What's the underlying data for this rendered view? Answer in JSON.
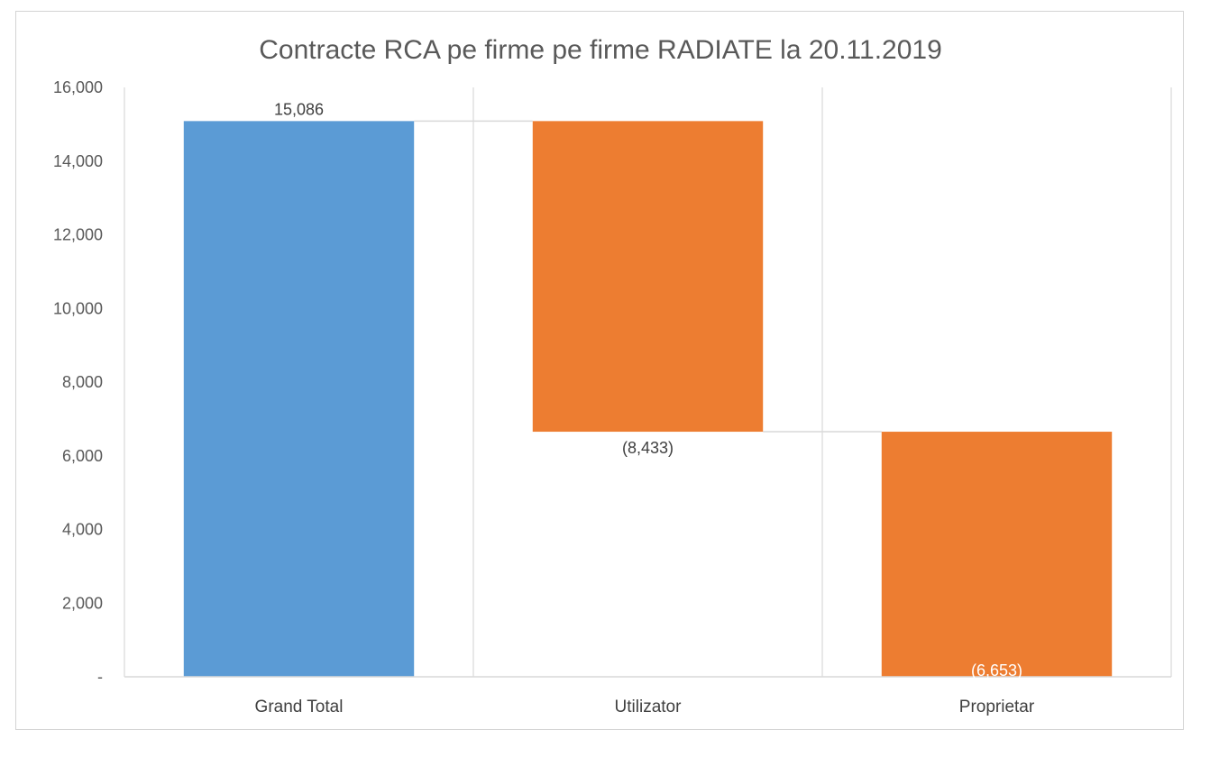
{
  "chart_data": {
    "type": "waterfall",
    "title": "Contracte RCA pe firme pe firme RADIATE la 20.11.2019",
    "xlabel": "",
    "ylabel": "",
    "ylim": [
      0,
      16000
    ],
    "y_ticks": [
      0,
      2000,
      4000,
      6000,
      8000,
      10000,
      12000,
      14000,
      16000
    ],
    "y_tick_labels": [
      "-",
      "2,000",
      "4,000",
      "6,000",
      "8,000",
      "10,000",
      "12,000",
      "14,000",
      "16,000"
    ],
    "categories": [
      "Grand Total",
      "Utilizator",
      "Proprietar"
    ],
    "values": [
      15086,
      -8433,
      -6653
    ],
    "data_labels": [
      "15,086",
      "(8,433)",
      "(6,653)"
    ],
    "bar_kinds": [
      "total",
      "decrease",
      "decrease"
    ],
    "colors": {
      "total": "#5b9bd5",
      "decrease": "#ed7d31",
      "grid": "#d9d9d9",
      "connector": "#d9d9d9",
      "text": "#595959"
    },
    "grid": true,
    "legend": "none"
  }
}
